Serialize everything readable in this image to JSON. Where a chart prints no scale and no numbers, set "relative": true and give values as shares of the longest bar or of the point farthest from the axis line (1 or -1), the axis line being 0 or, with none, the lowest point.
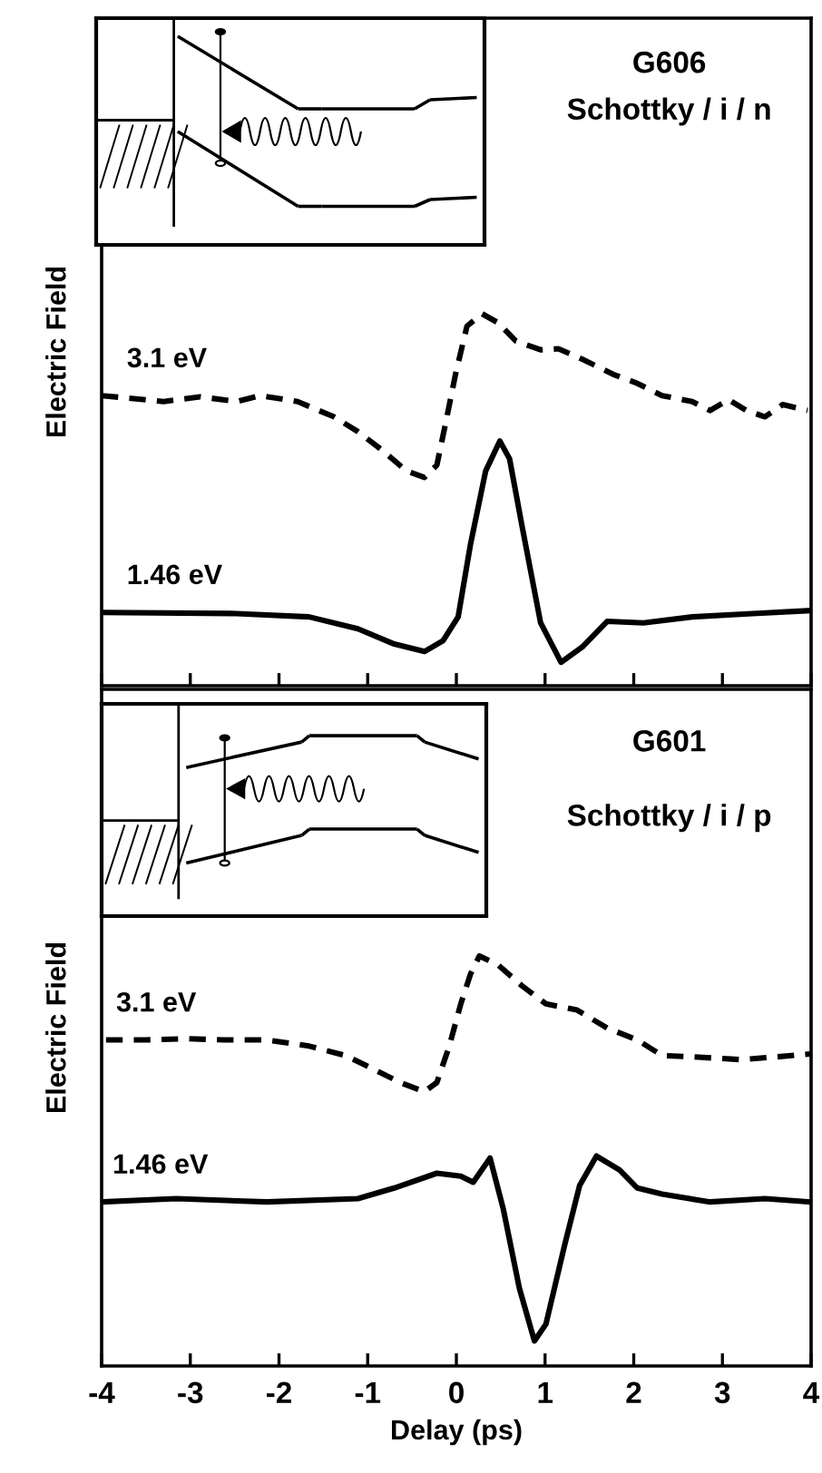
{
  "chart_data": [
    {
      "type": "line",
      "relative": true,
      "ylabel": "Electric Field",
      "xlim": [
        -4,
        4
      ],
      "xticks": [
        {
          "value": -4,
          "label": null
        },
        {
          "value": -3,
          "label": null
        },
        {
          "value": -2,
          "label": null
        },
        {
          "value": -1,
          "label": null
        },
        {
          "value": 0,
          "label": null
        },
        {
          "value": 1,
          "label": null
        },
        {
          "value": 2,
          "label": null
        },
        {
          "value": 3,
          "label": null
        },
        {
          "value": 4,
          "label": null
        }
      ],
      "tick_labels": false,
      "annotations": [
        "G606",
        "Schottky / i / n"
      ],
      "series": [
        {
          "name": "3.1 eV",
          "color": "#000000",
          "line_style": "dashed",
          "x": [
            -4.0,
            -3.64,
            -3.3,
            -2.89,
            -2.48,
            -2.21,
            -1.79,
            -1.38,
            -1.11,
            -0.84,
            -0.56,
            -0.36,
            -0.22,
            -0.12,
            -0.01,
            0.12,
            0.29,
            0.47,
            0.67,
            0.95,
            1.15,
            1.42,
            1.77,
            2.04,
            2.32,
            2.66,
            2.86,
            3.07,
            3.27,
            3.48,
            3.68,
            3.96
          ],
          "values": [
            0.78,
            0.772,
            0.764,
            0.777,
            0.764,
            0.78,
            0.764,
            0.723,
            0.683,
            0.634,
            0.577,
            0.56,
            0.593,
            0.707,
            0.837,
            0.967,
            1.0,
            0.976,
            0.927,
            0.903,
            0.906,
            0.878,
            0.837,
            0.813,
            0.78,
            0.764,
            0.74,
            0.769,
            0.74,
            0.723,
            0.756,
            0.74
          ]
        },
        {
          "name": "1.46 eV",
          "color": "#000000",
          "line_style": "solid",
          "x": [
            -4.0,
            -2.48,
            -1.66,
            -1.11,
            -0.7,
            -0.36,
            -0.15,
            0.02,
            0.16,
            0.33,
            0.49,
            0.6,
            0.74,
            0.95,
            1.18,
            1.42,
            1.7,
            2.11,
            2.66,
            3.34,
            3.99
          ],
          "values": [
            0.197,
            0.194,
            0.185,
            0.153,
            0.112,
            0.092,
            0.121,
            0.185,
            0.381,
            0.577,
            0.658,
            0.61,
            0.43,
            0.169,
            0.063,
            0.104,
            0.173,
            0.169,
            0.185,
            0.194,
            0.202
          ]
        }
      ]
    },
    {
      "type": "line",
      "relative": true,
      "ylabel": "Electric Field",
      "xlabel": "Delay (ps)",
      "xlim": [
        -4,
        4
      ],
      "xticks": [
        -4,
        -3,
        -2,
        -1,
        0,
        1,
        2,
        3,
        4
      ],
      "tick_labels": "x",
      "annotations": [
        "G601",
        "Schottky / i / p"
      ],
      "series": [
        {
          "name": "3.1 eV",
          "color": "#000000",
          "line_style": "dashed",
          "x": [
            -3.95,
            -3.51,
            -3.03,
            -2.62,
            -2.14,
            -1.66,
            -1.25,
            -0.9,
            -0.63,
            -0.36,
            -0.22,
            -0.08,
            0.05,
            0.16,
            0.26,
            0.47,
            0.74,
            1.01,
            1.36,
            1.7,
            2.04,
            2.32,
            2.66,
            3.21,
            3.62,
            3.99
          ],
          "values": [
            0.795,
            0.795,
            0.798,
            0.795,
            0.795,
            0.78,
            0.757,
            0.72,
            0.691,
            0.669,
            0.691,
            0.78,
            0.883,
            0.956,
            1.0,
            0.978,
            0.927,
            0.883,
            0.868,
            0.824,
            0.795,
            0.757,
            0.754,
            0.747,
            0.754,
            0.761
          ]
        },
        {
          "name": "1.46 eV",
          "color": "#000000",
          "line_style": "solid",
          "x": [
            -3.99,
            -3.16,
            -2.14,
            -1.11,
            -0.7,
            -0.22,
            0.05,
            0.19,
            0.38,
            0.53,
            0.71,
            0.88,
            1.01,
            1.22,
            1.39,
            1.58,
            1.84,
            2.04,
            2.32,
            2.86,
            3.48,
            3.99
          ],
          "values": [
            0.4,
            0.408,
            0.4,
            0.408,
            0.434,
            0.47,
            0.463,
            0.448,
            0.507,
            0.382,
            0.19,
            0.061,
            0.102,
            0.294,
            0.44,
            0.512,
            0.478,
            0.434,
            0.419,
            0.4,
            0.408,
            0.4
          ]
        }
      ]
    }
  ]
}
